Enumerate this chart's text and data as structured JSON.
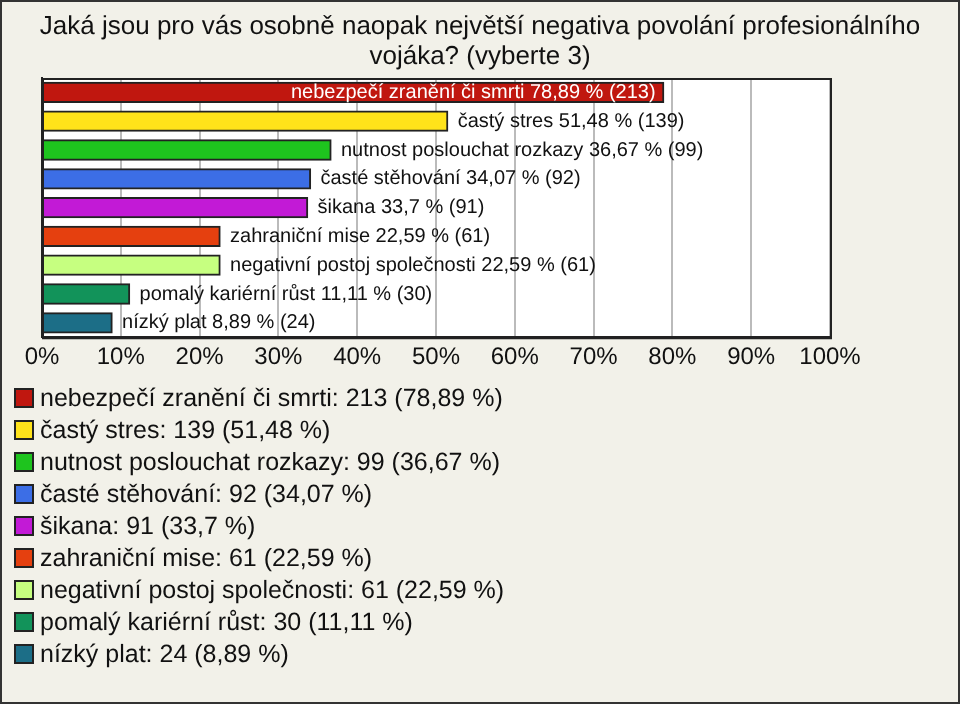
{
  "chart_data": {
    "type": "bar",
    "orientation": "horizontal",
    "stacked": true,
    "title": "Jaká jsou pro vás osobně naopak největší negativa povolání profesionálního vojáka? (vyberte 3)",
    "categories": [
      null,
      null,
      null,
      null,
      null,
      null,
      null,
      null,
      null
    ],
    "series": [
      {
        "name": "nebezpečí zranění či smrti: 213 (78,89 %)",
        "color": "#c0170f",
        "values": [
          78.89,
          null,
          null,
          null,
          null,
          null,
          null,
          null,
          null
        ],
        "value_labels": [
          "nebezpečí zranění či smrti 78,89 % (213)",
          null,
          null,
          null,
          null,
          null,
          null,
          null,
          null
        ]
      },
      {
        "name": "častý stres: 139 (51,48 %)",
        "color": "#ffe31a",
        "values": [
          null,
          51.48,
          null,
          null,
          null,
          null,
          null,
          null,
          null
        ],
        "value_labels": [
          null,
          "častý stres 51,48 % (139)",
          null,
          null,
          null,
          null,
          null,
          null,
          null
        ]
      },
      {
        "name": "nutnost poslouchat rozkazy: 99 (36,67 %)",
        "color": "#1ec41e",
        "values": [
          null,
          null,
          36.67,
          null,
          null,
          null,
          null,
          null,
          null
        ],
        "value_labels": [
          null,
          null,
          "nutnost poslouchat rozkazy 36,67 % (99)",
          null,
          null,
          null,
          null,
          null,
          null
        ]
      },
      {
        "name": "časté stěhování: 92 (34,07 %)",
        "color": "#3c6ee6",
        "values": [
          null,
          null,
          null,
          34.07,
          null,
          null,
          null,
          null,
          null
        ],
        "value_labels": [
          null,
          null,
          null,
          "časté stěhování 34,07 % (92)",
          null,
          null,
          null,
          null,
          null
        ]
      },
      {
        "name": "šikana: 91 (33,7 %)",
        "color": "#c21ad6",
        "values": [
          null,
          null,
          null,
          null,
          33.7,
          null,
          null,
          null,
          null
        ],
        "value_labels": [
          null,
          null,
          null,
          null,
          "šikana 33,7 % (91)",
          null,
          null,
          null,
          null
        ]
      },
      {
        "name": "zahraniční mise: 61 (22,59 %)",
        "color": "#e5400f",
        "values": [
          null,
          null,
          null,
          null,
          null,
          22.59,
          null,
          null,
          null
        ],
        "value_labels": [
          null,
          null,
          null,
          null,
          null,
          "zahraniční mise 22,59 % (61)",
          null,
          null,
          null
        ]
      },
      {
        "name": "negativní postoj společnosti: 61 (22,59 %)",
        "color": "#c6ff80",
        "values": [
          null,
          null,
          null,
          null,
          null,
          null,
          22.59,
          null,
          null
        ],
        "value_labels": [
          null,
          null,
          null,
          null,
          null,
          null,
          "negativní postoj společnosti 22,59 % (61)",
          null,
          null
        ]
      },
      {
        "name": "pomalý kariérní růst: 30 (11,11 %)",
        "color": "#12935a",
        "values": [
          null,
          null,
          null,
          null,
          null,
          null,
          null,
          11.11,
          null
        ],
        "value_labels": [
          null,
          null,
          null,
          null,
          null,
          null,
          null,
          "pomalý kariérní růst 11,11 % (30)",
          null
        ]
      },
      {
        "name": "nízký plat: 24 (8,89 %)",
        "color": "#1c6e87",
        "values": [
          null,
          null,
          null,
          null,
          null,
          null,
          null,
          null,
          8.89
        ],
        "value_labels": [
          null,
          null,
          null,
          null,
          null,
          null,
          null,
          null,
          "nízký plat 8,89 % (24)"
        ]
      }
    ],
    "xlim": [
      0,
      100
    ],
    "xticks": [
      {
        "value": 0,
        "label": "0%"
      },
      {
        "value": 10,
        "label": "10%"
      },
      {
        "value": 20,
        "label": "20%"
      },
      {
        "value": 30,
        "label": "30%"
      },
      {
        "value": 40,
        "label": "40%"
      },
      {
        "value": 50,
        "label": "50%"
      },
      {
        "value": 60,
        "label": "60%"
      },
      {
        "value": 70,
        "label": "70%"
      },
      {
        "value": 80,
        "label": "80%"
      },
      {
        "value": 90,
        "label": "90%"
      },
      {
        "value": 100,
        "label": "100%"
      }
    ],
    "grid": "x",
    "legend": "bottom"
  }
}
